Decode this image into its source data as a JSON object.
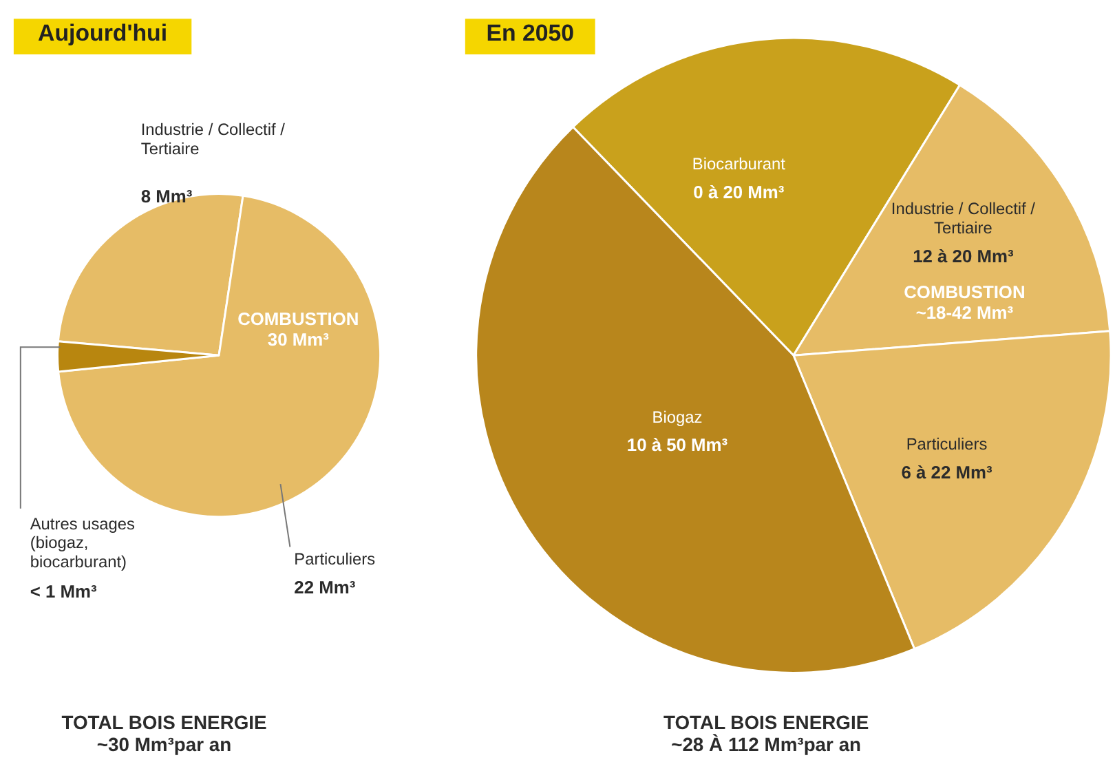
{
  "chart_data": [
    {
      "type": "pie",
      "title": "Aujourd'hui",
      "categories": [
        "Industrie / Collectif /\nTertiaire",
        "Particuliers",
        "Autres usages\n(biogaz,\nbiocarburant)"
      ],
      "values": [
        26,
        71,
        3
      ],
      "colors": [
        "#e6bc66",
        "#e6bc66",
        "#b8860f"
      ],
      "annotations": [
        "8 Mm³",
        "22 Mm³",
        "< 1 Mm³",
        "COMBUSTION\n30 Mm³",
        "TOTAL BOIS ENERGIE\n~30 Mm³par an"
      ]
    },
    {
      "type": "pie",
      "title": "En 2050",
      "categories": [
        "Biocarburant",
        "Industrie / Collectif /\nTertiaire",
        "Particuliers",
        "Biogaz"
      ],
      "values": [
        21,
        15,
        20,
        44
      ],
      "colors": [
        "#c9a11c",
        "#e6bc66",
        "#e6bc66",
        "#b8861c"
      ],
      "annotations": [
        "0 à 20 Mm³",
        "12 à 20 Mm³",
        "6 à 22 Mm³",
        "10 à 50 Mm³",
        "COMBUSTION\n~18-42 Mm³",
        "TOTAL BOIS ENERGIE\n~28 À 112 Mm³par an"
      ]
    }
  ]
}
